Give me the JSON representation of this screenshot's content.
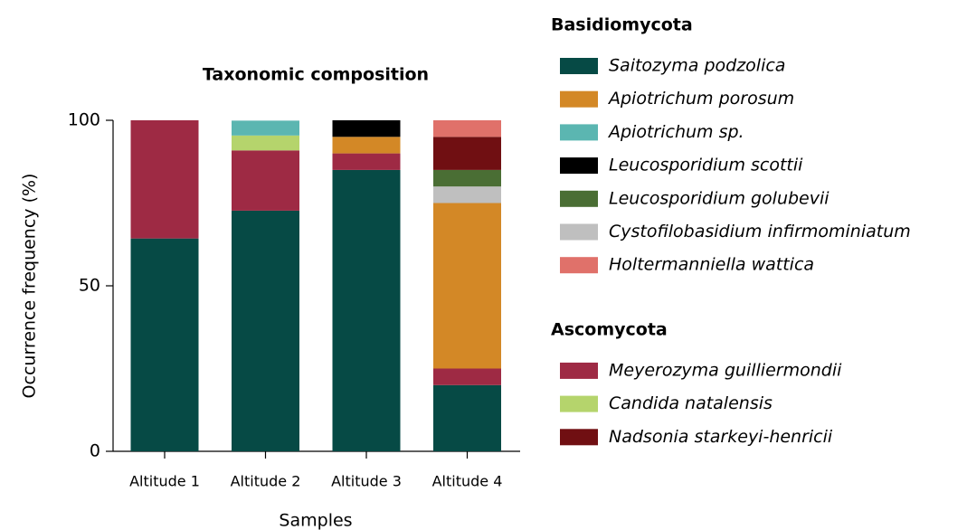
{
  "chart_data": {
    "type": "stacked_bar",
    "title": "Taxonomic composition",
    "x_label": "Samples",
    "y_label": "Occurrence frequency (%)",
    "categories": [
      "Altitude 1",
      "Altitude 2",
      "Altitude 3",
      "Altitude 4"
    ],
    "ylim": [
      0,
      100
    ],
    "yticks": [
      0,
      50,
      100
    ],
    "series_groups": [
      {
        "name": "Basidiomycota",
        "series": [
          {
            "name": "Saitozyma podzolica",
            "color": "#064a45",
            "values": [
              64.3,
              72.7,
              85,
              20
            ]
          },
          {
            "name": "Apiotrichum porosum",
            "color": "#d38826",
            "values": [
              0,
              0,
              5,
              50
            ]
          },
          {
            "name": "Apiotrichum sp.",
            "color": "#5bb6b1",
            "values": [
              0,
              4.5,
              0,
              0
            ]
          },
          {
            "name": "Leucosporidium scottii",
            "color": "#000000",
            "values": [
              0,
              0,
              5,
              0
            ]
          },
          {
            "name": "Leucosporidium golubevii",
            "color": "#4a6e34",
            "values": [
              0,
              0,
              0,
              5
            ]
          },
          {
            "name": "Cystofilobasidium infirmominiatum",
            "color": "#bfbfbf",
            "values": [
              0,
              0,
              0,
              5
            ]
          },
          {
            "name": "Holtermanniella wattica",
            "color": "#e0716a",
            "values": [
              0,
              0,
              0,
              5
            ]
          }
        ]
      },
      {
        "name": "Ascomycota",
        "series": [
          {
            "name": "Meyerozyma guilliermondii",
            "color": "#9e2a44",
            "values": [
              35.7,
              18.2,
              5,
              5
            ]
          },
          {
            "name": "Candida natalensis",
            "color": "#b5d46c",
            "values": [
              0,
              4.5,
              0,
              0
            ]
          },
          {
            "name": "Nadsonia starkeyi-henricii",
            "color": "#700f12",
            "values": [
              0,
              0,
              0,
              10
            ]
          }
        ]
      }
    ]
  }
}
